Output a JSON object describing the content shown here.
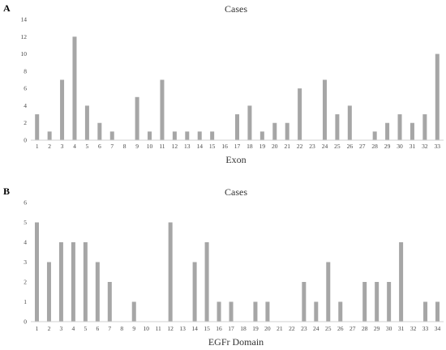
{
  "chart_data": [
    {
      "panel": "A",
      "type": "bar",
      "title": "Cases",
      "xlabel": "Exon",
      "ylabel": "",
      "ylim": [
        0,
        14
      ],
      "yticks": [
        0,
        2,
        4,
        6,
        8,
        10,
        12,
        14
      ],
      "categories": [
        "1",
        "2",
        "3",
        "4",
        "5",
        "6",
        "7",
        "8",
        "9",
        "10",
        "11",
        "12",
        "13",
        "14",
        "15",
        "16",
        "17",
        "18",
        "19",
        "20",
        "21",
        "22",
        "23",
        "24",
        "25",
        "26",
        "27",
        "28",
        "29",
        "30",
        "31",
        "32",
        "33"
      ],
      "values": [
        3,
        1,
        7,
        12,
        4,
        2,
        1,
        0,
        5,
        1,
        7,
        1,
        1,
        1,
        1,
        0,
        3,
        4,
        1,
        2,
        2,
        6,
        0,
        7,
        3,
        4,
        0,
        1,
        2,
        3,
        2,
        3,
        10
      ],
      "bar_color": "#a6a6a6",
      "grid": false
    },
    {
      "panel": "B",
      "type": "bar",
      "title": "Cases",
      "xlabel": "EGFr Domain",
      "ylabel": "",
      "ylim": [
        0,
        6
      ],
      "yticks": [
        0,
        1,
        2,
        3,
        4,
        5,
        6
      ],
      "categories": [
        "1",
        "2",
        "3",
        "4",
        "5",
        "6",
        "7",
        "8",
        "9",
        "10",
        "11",
        "12",
        "13",
        "14",
        "15",
        "16",
        "17",
        "18",
        "19",
        "20",
        "21",
        "22",
        "23",
        "24",
        "25",
        "26",
        "27",
        "28",
        "29",
        "30",
        "31",
        "32",
        "33",
        "34"
      ],
      "values": [
        5,
        3,
        4,
        4,
        4,
        3,
        2,
        0,
        1,
        0,
        0,
        5,
        0,
        3,
        4,
        1,
        1,
        0,
        1,
        1,
        0,
        0,
        2,
        1,
        3,
        1,
        0,
        2,
        2,
        2,
        4,
        0,
        1,
        1
      ],
      "bar_color": "#a6a6a6",
      "grid": false
    }
  ]
}
